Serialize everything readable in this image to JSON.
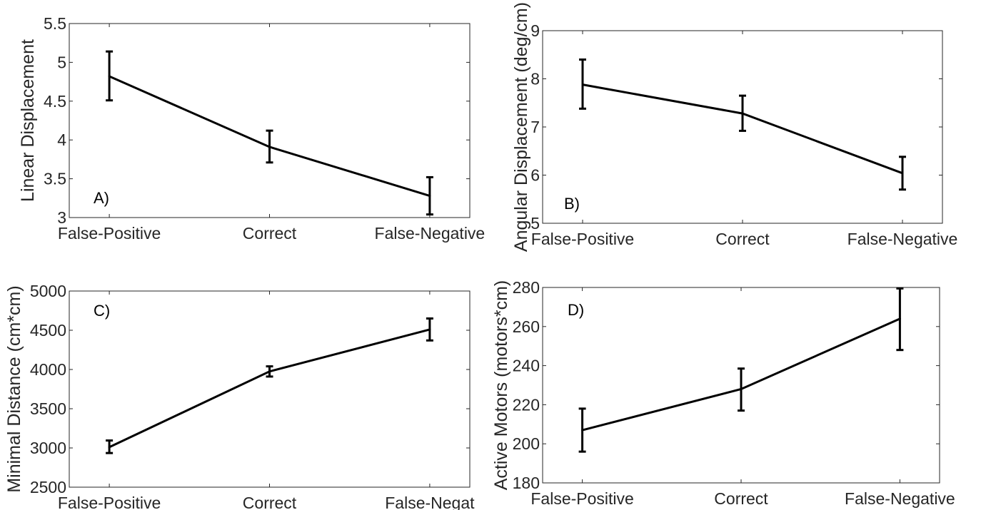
{
  "chart_data": [
    {
      "type": "line",
      "panel_label": "A)",
      "categories": [
        "False-Positive",
        "Correct",
        "False-Negative"
      ],
      "values": [
        4.82,
        3.91,
        3.28
      ],
      "error_low": [
        4.51,
        3.71,
        3.04
      ],
      "error_high": [
        5.14,
        4.12,
        3.52
      ],
      "ylabel": "Linear Displacement",
      "xlabel": "",
      "ylim": [
        3,
        5.5
      ],
      "yticks": [
        3,
        3.5,
        4,
        4.5,
        5,
        5.5
      ],
      "ytick_labels": [
        "3",
        "3.5",
        "4",
        "4.5",
        "5",
        "5.5"
      ],
      "grid": false
    },
    {
      "type": "line",
      "panel_label": "B)",
      "categories": [
        "False-Positive",
        "Correct",
        "False-Negative"
      ],
      "values": [
        7.88,
        7.28,
        6.04
      ],
      "error_low": [
        7.38,
        6.92,
        5.7
      ],
      "error_high": [
        8.4,
        7.65,
        6.38
      ],
      "ylabel": "Angular Displacement (deg/cm)",
      "xlabel": "",
      "ylim": [
        5,
        9
      ],
      "yticks": [
        5,
        6,
        7,
        8,
        9
      ],
      "ytick_labels": [
        "5",
        "6",
        "7",
        "8",
        "9"
      ],
      "grid": false
    },
    {
      "type": "line",
      "panel_label": "C)",
      "categories": [
        "False-Positive",
        "Correct",
        "False-Negative"
      ],
      "category_labels": [
        "False-Positive",
        "Correct",
        "False-Negat"
      ],
      "values": [
        3010,
        3975,
        4510
      ],
      "error_low": [
        2935,
        3910,
        4370
      ],
      "error_high": [
        3095,
        4040,
        4650
      ],
      "ylabel": "Minimal Distance (cm*cm)",
      "xlabel": "",
      "ylim": [
        2500,
        5000
      ],
      "yticks": [
        2500,
        3000,
        3500,
        4000,
        4500,
        5000
      ],
      "ytick_labels": [
        "2500",
        "3000",
        "3500",
        "4000",
        "4500",
        "5000"
      ],
      "grid": false
    },
    {
      "type": "line",
      "panel_label": "D)",
      "categories": [
        "False-Positive",
        "Correct",
        "False-Negative"
      ],
      "values": [
        207,
        228,
        264
      ],
      "error_low": [
        196,
        217,
        248
      ],
      "error_high": [
        218,
        238.5,
        279.5
      ],
      "ylabel": "Active Motors (motors*cm)",
      "xlabel": "",
      "ylim": [
        180,
        280
      ],
      "yticks": [
        180,
        200,
        220,
        240,
        260,
        280
      ],
      "ytick_labels": [
        "180",
        "200",
        "220",
        "240",
        "260",
        "280"
      ],
      "grid": false
    }
  ]
}
